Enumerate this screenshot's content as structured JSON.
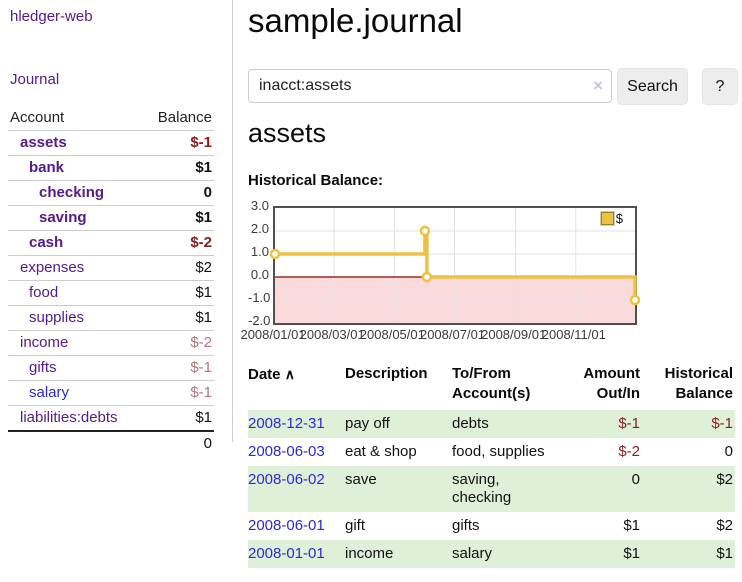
{
  "app": {
    "title": "hledger-web"
  },
  "colors": {
    "link_purple": "#551a8b",
    "link_blue": "#2a2ad4",
    "negative": "#8d1c1c",
    "negative_faded": "#b5737a",
    "row_stripe_green": "#dff0d8",
    "chart_line_gold": "#edc240",
    "chart_negative_fill": "#fadada",
    "chart_zero_line": "#8b0000"
  },
  "sidebar": {
    "journal_label": "Journal",
    "accounts": {
      "headers": {
        "account": "Account",
        "balance": "Balance"
      },
      "rows": [
        {
          "label": "assets",
          "balance": "$-1"
        },
        {
          "label": "bank",
          "balance": "$1"
        },
        {
          "label": "checking",
          "balance": "0"
        },
        {
          "label": "saving",
          "balance": "$1"
        },
        {
          "label": "cash",
          "balance": "$-2"
        },
        {
          "label": "expenses",
          "balance": "$2"
        },
        {
          "label": "food",
          "balance": "$1"
        },
        {
          "label": "supplies",
          "balance": "$1"
        },
        {
          "label": "income",
          "balance": "$-2"
        },
        {
          "label": "gifts",
          "balance": "$-1"
        },
        {
          "label": "salary",
          "balance": "$-1"
        },
        {
          "label": "liabilities:debts",
          "balance": "$1"
        }
      ],
      "total": "0"
    }
  },
  "main": {
    "title": "sample.journal",
    "search": {
      "value": "inacct:assets",
      "clear_label": "×",
      "button_label": "Search",
      "help_label": "?"
    },
    "account_heading": "assets",
    "section_label": "Historical Balance:"
  },
  "chart_data": {
    "type": "line",
    "style": "step-after",
    "title": "Historical Balance:",
    "series": [
      {
        "name": "$",
        "color": "#edc240",
        "points": [
          [
            "2008-01-01",
            1
          ],
          [
            "2008-06-01",
            2
          ],
          [
            "2008-06-03",
            0
          ],
          [
            "2008-12-31",
            -1
          ]
        ]
      }
    ],
    "x_range": [
      "2008-01-01",
      "2008-12-31"
    ],
    "ylim": [
      -2,
      3
    ],
    "yticks": [
      3.0,
      2.0,
      1.0,
      0.0,
      -1.0,
      -2.0
    ],
    "xticks": [
      "2008/01/01",
      "2008/03/01",
      "2008/05/01",
      "2008/07/01",
      "2008/09/01",
      "2008/11/01"
    ],
    "grid": true,
    "legend": {
      "position": "top-right",
      "label": "$"
    },
    "negative_region_fill": "#fadada",
    "zero_line_color": "#8b0000"
  },
  "register": {
    "headers": {
      "date": "Date",
      "sort_icon": "∧",
      "description": "Description",
      "accounts": "To/From Account(s)",
      "amount": "Amount Out/In",
      "balance": "Historical Balance"
    },
    "rows": [
      {
        "date": "2008-12-31",
        "description": "pay off",
        "accounts": "debts",
        "amount": "$-1",
        "balance": "$-1"
      },
      {
        "date": "2008-06-03",
        "description": "eat & shop",
        "accounts": "food, supplies",
        "amount": "$-2",
        "balance": "0"
      },
      {
        "date": "2008-06-02",
        "description": "save",
        "accounts": "saving, checking",
        "amount": "0",
        "balance": "$2"
      },
      {
        "date": "2008-06-01",
        "description": "gift",
        "accounts": "gifts",
        "amount": "$1",
        "balance": "$2"
      },
      {
        "date": "2008-01-01",
        "description": "income",
        "accounts": "salary",
        "amount": "$1",
        "balance": "$1"
      }
    ]
  }
}
